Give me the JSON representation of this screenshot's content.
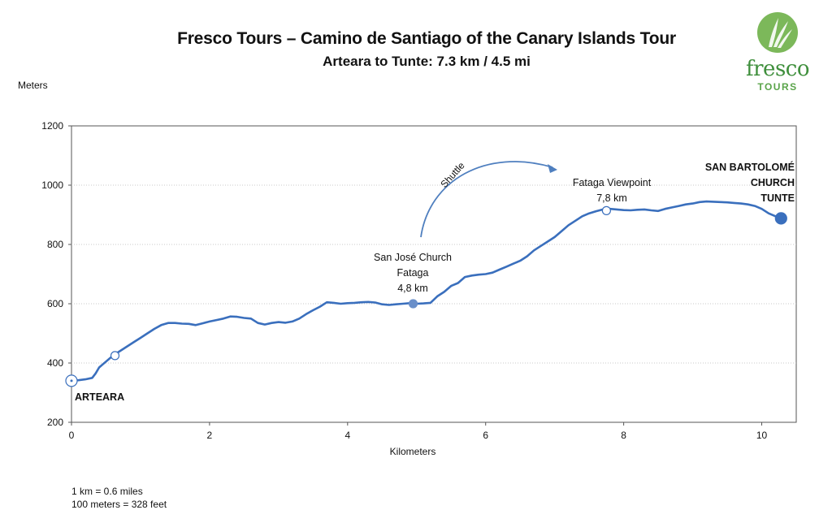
{
  "header": {
    "title": "Fresco Tours – Camino de Santiago of the Canary Islands Tour",
    "subtitle": "Arteara to Tunte: 7.3 km / 4.5 mi"
  },
  "logo": {
    "word": "fresco",
    "sub": "TOURS",
    "icon": "leaf-logo-icon",
    "color": "#5aa44a"
  },
  "notes": [
    "1 km = 0.6 miles",
    "100 meters = 328 feet"
  ],
  "chart_data": {
    "type": "line",
    "xlabel": "Kilometers",
    "ylabel": "Meters",
    "xlim": [
      0,
      10.5
    ],
    "ylim": [
      200,
      1200
    ],
    "x_ticks": [
      0,
      2,
      4,
      6,
      8,
      10
    ],
    "y_ticks": [
      200,
      400,
      600,
      800,
      1000,
      1200
    ],
    "grid": "horizontal dotted",
    "line_color": "#3a6fbd",
    "series": [
      {
        "x": [
          0,
          0.1,
          0.2,
          0.3,
          0.35,
          0.4,
          0.5,
          0.6,
          0.7,
          0.8,
          0.9,
          1.0,
          1.1,
          1.2,
          1.3,
          1.4,
          1.5,
          1.6,
          1.7,
          1.8,
          1.9,
          2.0,
          2.1,
          2.2,
          2.3,
          2.4,
          2.5,
          2.6,
          2.7,
          2.8,
          2.9,
          3.0,
          3.1,
          3.2,
          3.3,
          3.4,
          3.5,
          3.6,
          3.7,
          3.8,
          3.9,
          4.0,
          4.1,
          4.2,
          4.3,
          4.4,
          4.5,
          4.6,
          4.7,
          4.8,
          4.9,
          5.0,
          5.1,
          5.2,
          5.3,
          5.4,
          5.5,
          5.6,
          5.7,
          5.8,
          5.9,
          6.0,
          6.1,
          6.2,
          6.3,
          6.4,
          6.5,
          6.6,
          6.7,
          6.8,
          6.9,
          7.0,
          7.1,
          7.2,
          7.3,
          7.4,
          7.5,
          7.6,
          7.7,
          7.8,
          7.9,
          8.0,
          8.1,
          8.2,
          8.3,
          8.4,
          8.5,
          8.6,
          8.7,
          8.8,
          8.9,
          9.0,
          9.1,
          9.2,
          9.3,
          9.4,
          9.5,
          9.6,
          9.7,
          9.8,
          9.9,
          10.0,
          10.1,
          10.2,
          10.3
        ],
        "y": [
          340,
          342,
          345,
          350,
          365,
          385,
          405,
          425,
          440,
          455,
          470,
          485,
          500,
          515,
          528,
          535,
          535,
          533,
          532,
          528,
          534,
          540,
          545,
          550,
          557,
          556,
          552,
          550,
          535,
          530,
          535,
          538,
          536,
          540,
          550,
          565,
          578,
          590,
          605,
          603,
          600,
          602,
          603,
          605,
          606,
          604,
          598,
          596,
          598,
          600,
          602,
          600,
          601,
          603,
          625,
          640,
          660,
          670,
          690,
          695,
          698,
          700,
          705,
          715,
          725,
          735,
          745,
          760,
          780,
          795,
          810,
          825,
          845,
          865,
          880,
          895,
          905,
          912,
          918,
          920,
          918,
          916,
          915,
          917,
          918,
          915,
          913,
          920,
          925,
          930,
          935,
          938,
          943,
          945,
          944,
          943,
          942,
          940,
          938,
          935,
          930,
          920,
          905,
          895,
          888
        ]
      }
    ],
    "annotations": [
      {
        "x": 0,
        "y": 340,
        "lines": [
          "ARTEARA"
        ],
        "bold": true,
        "marker": "open-large"
      },
      {
        "x": 0.63,
        "y": 425,
        "lines": [],
        "marker": "open"
      },
      {
        "x": 4.95,
        "y": 600,
        "lines": [
          "San José Church",
          "Fataga",
          "4,8 km"
        ],
        "bold": false,
        "marker": "filled"
      },
      {
        "x": 7.75,
        "y": 914,
        "lines": [
          "Fataga Viewpoint",
          "7,8 km"
        ],
        "bold": false,
        "marker": "open"
      },
      {
        "x": 10.28,
        "y": 888,
        "lines": [
          "SAN BARTOLOMÉ",
          "CHURCH",
          "TUNTE"
        ],
        "bold": true,
        "marker": "filled-large"
      }
    ],
    "shuttle_label": "Shuttle"
  }
}
